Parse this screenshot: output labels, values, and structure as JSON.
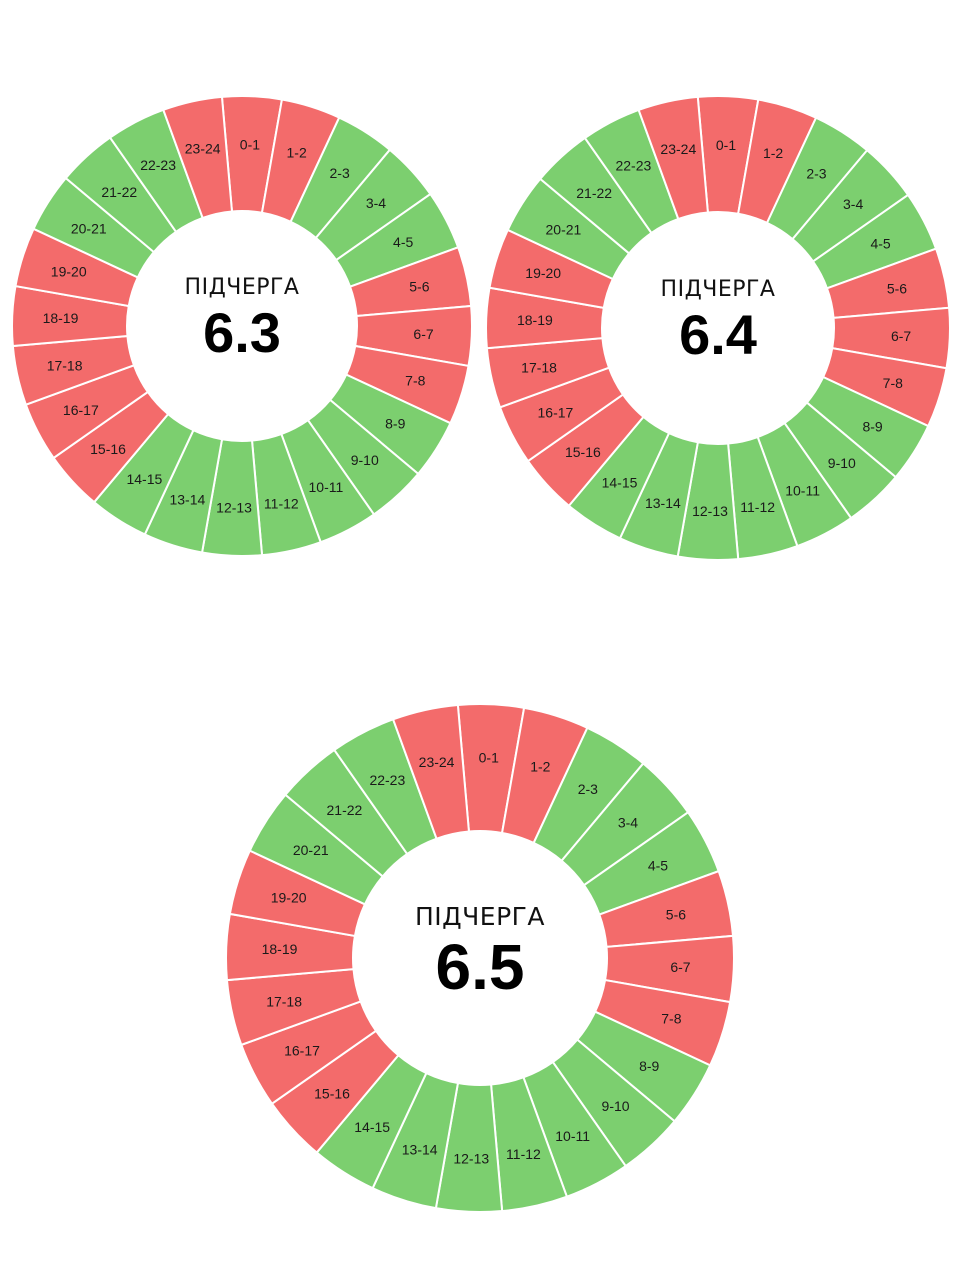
{
  "colors": {
    "off": "#f36b6b",
    "on": "#7ccf6f",
    "separator": "#ffffff"
  },
  "hour_labels": [
    "0-1",
    "1-2",
    "2-3",
    "3-4",
    "4-5",
    "5-6",
    "6-7",
    "7-8",
    "8-9",
    "9-10",
    "10-11",
    "11-12",
    "12-13",
    "13-14",
    "14-15",
    "15-16",
    "16-17",
    "17-18",
    "18-19",
    "19-20",
    "20-21",
    "21-22",
    "22-23",
    "23-24"
  ],
  "queues": [
    {
      "title": "ПІДЧЕРГА",
      "number": "6.3",
      "states": [
        "off",
        "off",
        "on",
        "on",
        "on",
        "off",
        "off",
        "off",
        "on",
        "on",
        "on",
        "on",
        "on",
        "on",
        "on",
        "off",
        "off",
        "off",
        "off",
        "off",
        "on",
        "on",
        "on",
        "off"
      ]
    },
    {
      "title": "ПІДЧЕРГА",
      "number": "6.4",
      "states": [
        "off",
        "off",
        "on",
        "on",
        "on",
        "off",
        "off",
        "off",
        "on",
        "on",
        "on",
        "on",
        "on",
        "on",
        "on",
        "off",
        "off",
        "off",
        "off",
        "off",
        "on",
        "on",
        "on",
        "off"
      ]
    },
    {
      "title": "ПІДЧЕРГА",
      "number": "6.5",
      "states": [
        "off",
        "off",
        "on",
        "on",
        "on",
        "off",
        "off",
        "off",
        "on",
        "on",
        "on",
        "on",
        "on",
        "on",
        "on",
        "off",
        "off",
        "off",
        "off",
        "off",
        "on",
        "on",
        "on",
        "off"
      ]
    }
  ]
}
